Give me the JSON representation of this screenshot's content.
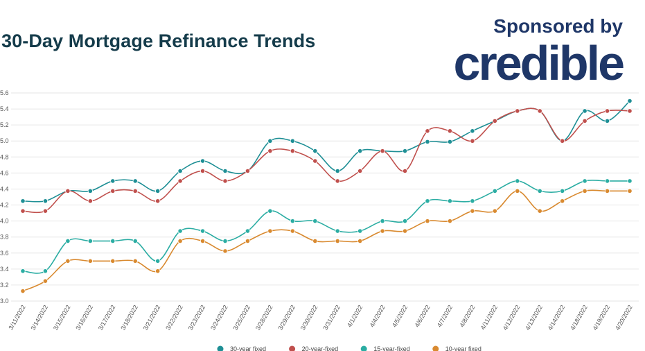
{
  "header": {
    "title": "30-Day Mortgage Refinance Trends",
    "sponsor_text": "Sponsored by",
    "brand": "credible"
  },
  "chart_data": {
    "type": "line",
    "title": "30-Day Mortgage Refinance Trends",
    "xlabel": "",
    "ylabel": "",
    "ylim": [
      3.0,
      5.6
    ],
    "yticks": [
      3.0,
      3.2,
      3.4,
      3.6,
      3.8,
      4.0,
      4.2,
      4.4,
      4.6,
      4.8,
      5.0,
      5.2,
      5.4,
      5.6
    ],
    "grid": true,
    "legend": "bottom",
    "x": [
      "3/11/2022",
      "3/14/2022",
      "3/15/2022",
      "3/16/2022",
      "3/17/2022",
      "3/18/2022",
      "3/21/2022",
      "3/22/2022",
      "3/23/2022",
      "3/24/2022",
      "3/25/2022",
      "3/28/2022",
      "3/29/2022",
      "3/30/2022",
      "3/31/2022",
      "4/1/2022",
      "4/4/2022",
      "4/5/2022",
      "4/6/2022",
      "4/7/2022",
      "4/8/2022",
      "4/11/2022",
      "4/12/2022",
      "4/13/2022",
      "4/14/2022",
      "4/18/2022",
      "4/19/2022",
      "4/20/2022"
    ],
    "series": [
      {
        "name": "30-year fixed",
        "color": "#1e8f95",
        "values": [
          4.25,
          4.25,
          4.375,
          4.375,
          4.5,
          4.5,
          4.375,
          4.625,
          4.75,
          4.625,
          4.625,
          5.0,
          5.0,
          4.875,
          4.625,
          4.875,
          4.875,
          4.875,
          4.99,
          4.99,
          5.125,
          5.25,
          5.375,
          5.375,
          5.0,
          5.375,
          5.25,
          5.5
        ]
      },
      {
        "name": "20-year-fixed",
        "color": "#c0504d",
        "values": [
          4.125,
          4.125,
          4.375,
          4.25,
          4.375,
          4.375,
          4.25,
          4.5,
          4.625,
          4.5,
          4.625,
          4.875,
          4.875,
          4.75,
          4.5,
          4.625,
          4.875,
          4.625,
          5.125,
          5.125,
          5.0,
          5.25,
          5.375,
          5.375,
          5.0,
          5.25,
          5.375,
          5.375
        ]
      },
      {
        "name": "15-year-fixed",
        "color": "#2bada3",
        "values": [
          3.375,
          3.375,
          3.75,
          3.75,
          3.75,
          3.75,
          3.5,
          3.875,
          3.875,
          3.75,
          3.875,
          4.125,
          4.0,
          4.0,
          3.875,
          3.875,
          4.0,
          4.0,
          4.25,
          4.25,
          4.25,
          4.375,
          4.5,
          4.375,
          4.375,
          4.5,
          4.5,
          4.5
        ]
      },
      {
        "name": "10-year fixed",
        "color": "#d98a30",
        "values": [
          3.125,
          3.25,
          3.5,
          3.5,
          3.5,
          3.5,
          3.375,
          3.75,
          3.75,
          3.625,
          3.75,
          3.875,
          3.875,
          3.75,
          3.75,
          3.75,
          3.875,
          3.875,
          4.0,
          4.0,
          4.125,
          4.125,
          4.375,
          4.125,
          4.25,
          4.375,
          4.375,
          4.375
        ]
      }
    ]
  }
}
